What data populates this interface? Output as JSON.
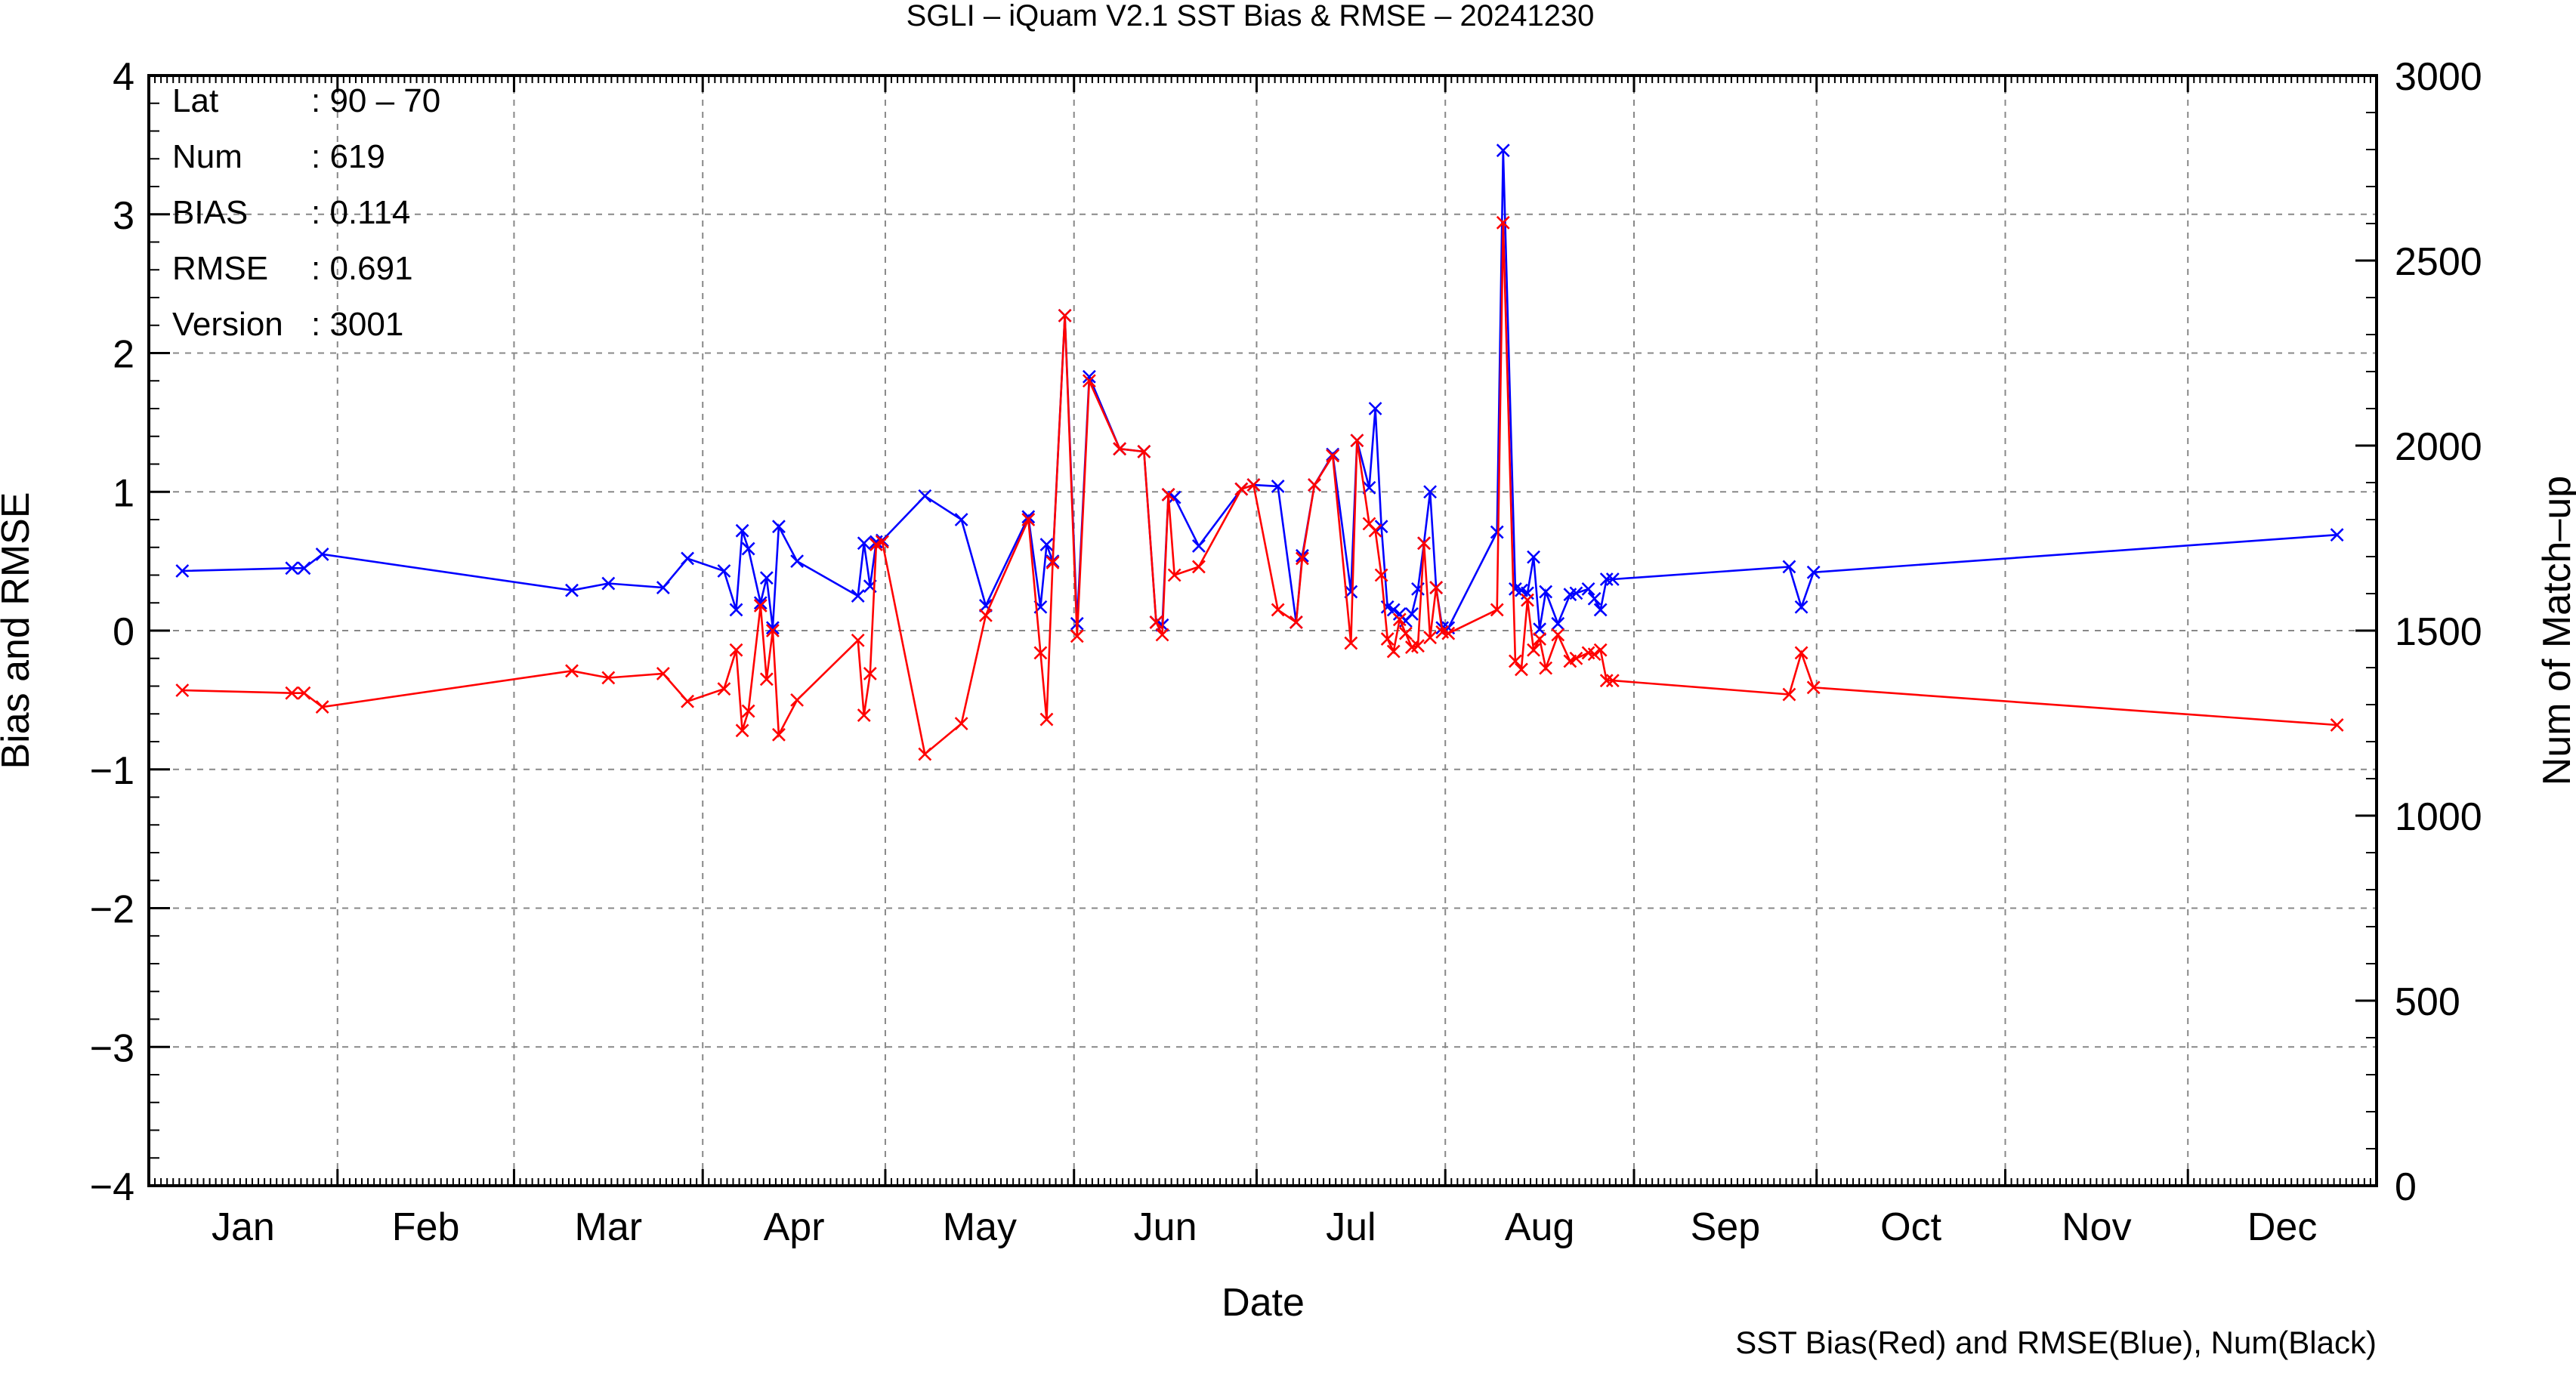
{
  "chart_data": {
    "type": "line",
    "title": "SGLI – iQuam V2.1 SST Bias & RMSE  – 20241230",
    "xlabel": "Date",
    "ylabel": "Bias and RMSE",
    "y2label": "Num of Match–up",
    "caption": "SST Bias(Red) and RMSE(Blue), Num(Black)",
    "xlim": [
      "2024-01-01",
      "2024-12-31"
    ],
    "x_tick_labels": [
      "Jan",
      "Feb",
      "Mar",
      "Apr",
      "May",
      "Jun",
      "Jul",
      "Aug",
      "Sep",
      "Oct",
      "Nov",
      "Dec"
    ],
    "ylim": [
      -4,
      4
    ],
    "y_ticks": [
      -4,
      -3,
      -2,
      -1,
      0,
      1,
      2,
      3,
      4
    ],
    "y_tick_labels": [
      "−4",
      "−3",
      "−2",
      "−1",
      "0",
      "1",
      "2",
      "3",
      "4"
    ],
    "y2lim": [
      0,
      3000
    ],
    "y2_ticks": [
      0,
      500,
      1000,
      1500,
      2000,
      2500,
      3000
    ],
    "y2_tick_labels": [
      "0",
      "500",
      "1000",
      "1500",
      "2000",
      "2500",
      "3000"
    ],
    "grid": true,
    "stats": [
      {
        "label": "Lat",
        "value": ": 90 – 70"
      },
      {
        "label": "Num",
        "value": ": 619"
      },
      {
        "label": "BIAS",
        "value": ": 0.114"
      },
      {
        "label": "RMSE",
        "value": ": 0.691"
      },
      {
        "label": "Version",
        "value": ": 3001"
      }
    ],
    "colors": {
      "bias": "#ff0000",
      "rmse": "#0000ff",
      "num": "#000000",
      "grid": "#888888"
    },
    "series": [
      {
        "key": "rmse",
        "x": [
          "2024-01-06",
          "2024-01-24",
          "2024-01-26",
          "2024-01-29",
          "2024-03-10",
          "2024-03-16",
          "2024-03-25",
          "2024-03-29",
          "2024-04-04",
          "2024-04-06",
          "2024-04-07",
          "2024-04-08",
          "2024-04-10",
          "2024-04-11",
          "2024-04-12",
          "2024-04-13",
          "2024-04-16",
          "2024-04-26",
          "2024-04-27",
          "2024-04-28",
          "2024-04-29",
          "2024-04-30",
          "2024-05-07",
          "2024-05-13",
          "2024-05-17",
          "2024-05-24",
          "2024-05-26",
          "2024-05-27",
          "2024-05-28",
          "2024-05-30",
          "2024-06-01",
          "2024-06-03",
          "2024-06-08",
          "2024-06-12",
          "2024-06-14",
          "2024-06-15",
          "2024-06-16",
          "2024-06-17",
          "2024-06-21",
          "2024-06-28",
          "2024-06-30",
          "2024-07-04",
          "2024-07-07",
          "2024-07-08",
          "2024-07-10",
          "2024-07-13",
          "2024-07-16",
          "2024-07-17",
          "2024-07-19",
          "2024-07-20",
          "2024-07-21",
          "2024-07-22",
          "2024-07-23",
          "2024-07-24",
          "2024-07-25",
          "2024-07-26",
          "2024-07-27",
          "2024-07-28",
          "2024-07-29",
          "2024-07-30",
          "2024-07-31",
          "2024-08-01",
          "2024-08-09",
          "2024-08-10",
          "2024-08-12",
          "2024-08-13",
          "2024-08-14",
          "2024-08-15",
          "2024-08-16",
          "2024-08-17",
          "2024-08-19",
          "2024-08-21",
          "2024-08-22",
          "2024-08-24",
          "2024-08-25",
          "2024-08-26",
          "2024-08-27",
          "2024-08-28",
          "2024-09-26",
          "2024-09-28",
          "2024-09-30",
          "2024-12-25"
        ],
        "values": [
          0.43,
          0.45,
          0.45,
          0.55,
          0.29,
          0.34,
          0.31,
          0.52,
          0.43,
          0.15,
          0.72,
          0.59,
          0.2,
          0.38,
          0.02,
          0.75,
          0.5,
          0.25,
          0.63,
          0.32,
          0.64,
          0.65,
          0.97,
          0.8,
          0.18,
          0.82,
          0.17,
          0.62,
          0.5,
          2.27,
          0.05,
          1.83,
          1.31,
          1.29,
          0.06,
          0.04,
          0.98,
          0.96,
          0.61,
          1.02,
          1.05,
          1.04,
          0.06,
          0.54,
          1.05,
          1.27,
          0.28,
          1.37,
          1.03,
          1.6,
          0.75,
          0.17,
          0.15,
          0.12,
          0.07,
          0.12,
          0.3,
          0.63,
          1.0,
          0.31,
          0.02,
          0.02,
          0.71,
          3.46,
          0.3,
          0.29,
          0.27,
          0.53,
          0.01,
          0.28,
          0.05,
          0.26,
          0.27,
          0.3,
          0.23,
          0.15,
          0.37,
          0.37,
          0.46,
          0.17,
          0.42,
          0.69
        ]
      },
      {
        "key": "bias",
        "x": [
          "2024-01-06",
          "2024-01-24",
          "2024-01-26",
          "2024-01-29",
          "2024-03-10",
          "2024-03-16",
          "2024-03-25",
          "2024-03-29",
          "2024-04-04",
          "2024-04-06",
          "2024-04-07",
          "2024-04-08",
          "2024-04-10",
          "2024-04-11",
          "2024-04-12",
          "2024-04-13",
          "2024-04-16",
          "2024-04-26",
          "2024-04-27",
          "2024-04-28",
          "2024-04-29",
          "2024-04-30",
          "2024-05-07",
          "2024-05-13",
          "2024-05-17",
          "2024-05-24",
          "2024-05-26",
          "2024-05-27",
          "2024-05-28",
          "2024-05-30",
          "2024-06-01",
          "2024-06-03",
          "2024-06-08",
          "2024-06-12",
          "2024-06-14",
          "2024-06-15",
          "2024-06-16",
          "2024-06-17",
          "2024-06-21",
          "2024-06-28",
          "2024-06-30",
          "2024-07-04",
          "2024-07-07",
          "2024-07-08",
          "2024-07-10",
          "2024-07-13",
          "2024-07-16",
          "2024-07-17",
          "2024-07-19",
          "2024-07-20",
          "2024-07-21",
          "2024-07-22",
          "2024-07-23",
          "2024-07-24",
          "2024-07-25",
          "2024-07-26",
          "2024-07-27",
          "2024-07-28",
          "2024-07-29",
          "2024-07-30",
          "2024-07-31",
          "2024-08-01",
          "2024-08-09",
          "2024-08-10",
          "2024-08-12",
          "2024-08-13",
          "2024-08-14",
          "2024-08-15",
          "2024-08-16",
          "2024-08-17",
          "2024-08-19",
          "2024-08-21",
          "2024-08-22",
          "2024-08-24",
          "2024-08-25",
          "2024-08-26",
          "2024-08-27",
          "2024-08-28",
          "2024-09-26",
          "2024-09-28",
          "2024-09-30",
          "2024-12-25"
        ],
        "values": [
          -0.43,
          -0.45,
          -0.45,
          -0.55,
          -0.29,
          -0.34,
          -0.31,
          -0.51,
          -0.42,
          -0.14,
          -0.72,
          -0.58,
          0.18,
          -0.35,
          0.0,
          -0.75,
          -0.5,
          -0.07,
          -0.61,
          -0.31,
          0.62,
          0.64,
          -0.89,
          -0.67,
          0.11,
          0.8,
          -0.16,
          -0.64,
          0.49,
          2.27,
          -0.04,
          1.8,
          1.31,
          1.29,
          0.06,
          -0.03,
          0.98,
          0.4,
          0.46,
          1.02,
          1.05,
          0.15,
          0.06,
          0.52,
          1.05,
          1.26,
          -0.09,
          1.37,
          0.77,
          0.72,
          0.4,
          -0.06,
          -0.15,
          0.08,
          -0.02,
          -0.12,
          -0.11,
          0.63,
          -0.05,
          0.31,
          -0.01,
          -0.02,
          0.15,
          2.94,
          -0.22,
          -0.28,
          0.22,
          -0.14,
          -0.06,
          -0.27,
          -0.03,
          -0.22,
          -0.2,
          -0.16,
          -0.17,
          -0.14,
          -0.36,
          -0.36,
          -0.46,
          -0.16,
          -0.41,
          -0.68
        ]
      }
    ]
  }
}
